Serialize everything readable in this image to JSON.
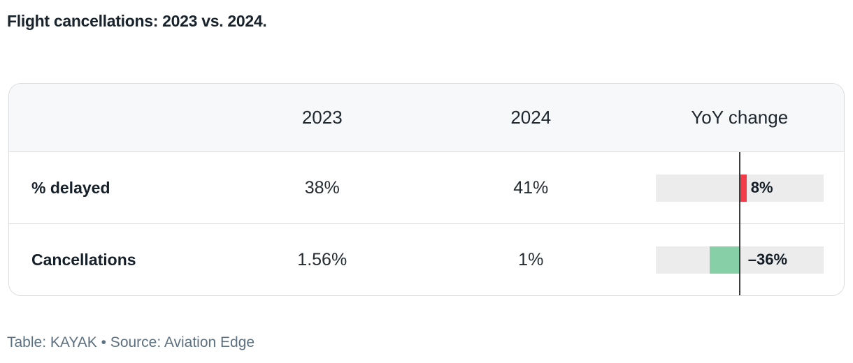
{
  "title": "Flight cancellations: 2023 vs. 2024.",
  "table": {
    "columns": [
      "",
      "2023",
      "2024",
      "YoY change"
    ],
    "rows": [
      {
        "label": "% delayed",
        "y2023": "38%",
        "y2024": "41%",
        "yoy_label": "8%",
        "yoy_value": 8
      },
      {
        "label": "Cancellations",
        "y2023": "1.56%",
        "y2024": "1%",
        "yoy_label": "–36%",
        "yoy_value": -36
      }
    ]
  },
  "yoy_axis": {
    "min": -100,
    "max": 100
  },
  "colors": {
    "positive_bar": "#f23c49",
    "negative_bar": "#87cfa7",
    "bar_track": "#ececec",
    "zero_line": "#3d3d3d",
    "header_bg": "#f7f8fa",
    "border": "#dcdde0"
  },
  "footer": {
    "text": "Table: KAYAK • Source: Aviation Edge"
  },
  "chart_data": {
    "type": "table",
    "title": "Flight cancellations: 2023 vs. 2024.",
    "columns": [
      "",
      "2023",
      "2024",
      "YoY change"
    ],
    "rows": [
      [
        "% delayed",
        "38%",
        "41%",
        "8%"
      ],
      [
        "Cancellations",
        "1.56%",
        "1%",
        "-36%"
      ]
    ],
    "yoy_change_bars": {
      "type": "diverging-bar",
      "axis_range": [
        -100,
        100
      ],
      "values_percent": [
        8,
        -36
      ],
      "positive_color": "#f23c49",
      "negative_color": "#87cfa7"
    },
    "source": "Table: KAYAK • Source: Aviation Edge"
  }
}
